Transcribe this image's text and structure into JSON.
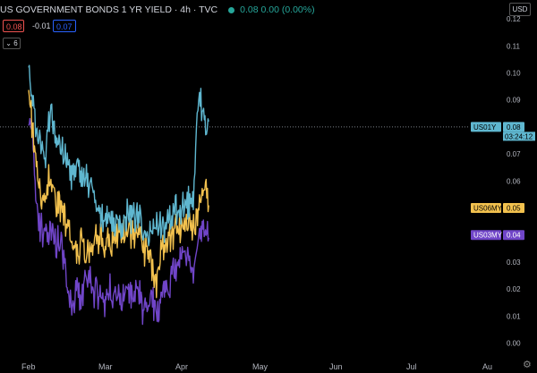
{
  "header": {
    "symbol_title": "US GOVERNMENT BONDS 1 YR YIELD · 4h · TVC",
    "ohlc": "0.08 0.00 (0.00%)"
  },
  "trade": {
    "sell": "0.08",
    "spread": "-0.01",
    "buy": "0.07"
  },
  "indicator_toggle": "6",
  "currency": "USD",
  "settings_icon": "gear-icon",
  "colors": {
    "us01y": "#5fb7d0",
    "us06my": "#f2c14e",
    "us03my": "#7045c8",
    "bg": "#000000"
  },
  "chart_data": {
    "type": "line",
    "x": [
      "Feb",
      "Mar",
      "Apr",
      "May",
      "Jun",
      "Jul",
      "Au"
    ],
    "ylim": [
      -0.005,
      0.125
    ],
    "y_ticks": [
      "0.12",
      "0.11",
      "0.10",
      "0.09",
      "0.08",
      "0.07",
      "0.06",
      "0.05",
      "0.04",
      "0.03",
      "0.02",
      "0.01",
      "0.00"
    ],
    "series": [
      {
        "name": "US01Y",
        "last": "0.08",
        "countdown": "03:24:12",
        "anchors": [
          [
            0,
            0.1
          ],
          [
            0.06,
            0.09
          ],
          [
            0.1,
            0.08
          ],
          [
            0.16,
            0.07
          ],
          [
            0.22,
            0.068
          ],
          [
            0.26,
            0.085
          ],
          [
            0.3,
            0.083
          ],
          [
            0.36,
            0.078
          ],
          [
            0.44,
            0.07
          ],
          [
            0.52,
            0.064
          ],
          [
            0.6,
            0.061
          ],
          [
            0.64,
            0.068
          ],
          [
            0.7,
            0.063
          ],
          [
            0.76,
            0.06
          ],
          [
            0.84,
            0.056
          ],
          [
            0.88,
            0.052
          ],
          [
            0.93,
            0.048
          ],
          [
            1.0,
            0.047
          ],
          [
            1.1,
            0.046
          ],
          [
            1.22,
            0.045
          ],
          [
            1.28,
            0.047
          ],
          [
            1.34,
            0.046
          ],
          [
            1.4,
            0.047
          ],
          [
            1.48,
            0.043
          ],
          [
            1.55,
            0.04
          ],
          [
            1.62,
            0.043
          ],
          [
            1.7,
            0.045
          ],
          [
            1.78,
            0.043
          ],
          [
            1.86,
            0.047
          ],
          [
            1.96,
            0.05
          ],
          [
            2.05,
            0.052
          ],
          [
            2.14,
            0.051
          ],
          [
            2.18,
            0.08
          ],
          [
            2.22,
            0.092
          ],
          [
            2.3,
            0.08
          ],
          [
            2.34,
            0.082
          ]
        ]
      },
      {
        "name": "US06MY",
        "last": "0.05",
        "anchors": [
          [
            0,
            0.09
          ],
          [
            0.05,
            0.08
          ],
          [
            0.1,
            0.065
          ],
          [
            0.16,
            0.052
          ],
          [
            0.22,
            0.053
          ],
          [
            0.26,
            0.063
          ],
          [
            0.3,
            0.058
          ],
          [
            0.36,
            0.053
          ],
          [
            0.42,
            0.051
          ],
          [
            0.48,
            0.045
          ],
          [
            0.52,
            0.04
          ],
          [
            0.58,
            0.037
          ],
          [
            0.64,
            0.034
          ],
          [
            0.7,
            0.038
          ],
          [
            0.76,
            0.034
          ],
          [
            0.84,
            0.036
          ],
          [
            0.9,
            0.04
          ],
          [
            0.96,
            0.037
          ],
          [
            1.02,
            0.038
          ],
          [
            1.08,
            0.037
          ],
          [
            1.16,
            0.042
          ],
          [
            1.24,
            0.039
          ],
          [
            1.3,
            0.043
          ],
          [
            1.34,
            0.041
          ],
          [
            1.4,
            0.042
          ],
          [
            1.48,
            0.036
          ],
          [
            1.55,
            0.033
          ],
          [
            1.62,
            0.028
          ],
          [
            1.66,
            0.023
          ],
          [
            1.7,
            0.031
          ],
          [
            1.78,
            0.037
          ],
          [
            1.86,
            0.04
          ],
          [
            1.96,
            0.043
          ],
          [
            2.04,
            0.042
          ],
          [
            2.1,
            0.044
          ],
          [
            2.16,
            0.045
          ],
          [
            2.22,
            0.05
          ],
          [
            2.28,
            0.06
          ],
          [
            2.34,
            0.051
          ]
        ]
      },
      {
        "name": "US03MY",
        "last": "0.04",
        "anchors": [
          [
            0,
            0.087
          ],
          [
            0.05,
            0.075
          ],
          [
            0.1,
            0.05
          ],
          [
            0.14,
            0.043
          ],
          [
            0.2,
            0.041
          ],
          [
            0.26,
            0.04
          ],
          [
            0.32,
            0.038
          ],
          [
            0.38,
            0.037
          ],
          [
            0.44,
            0.035
          ],
          [
            0.5,
            0.022
          ],
          [
            0.56,
            0.015
          ],
          [
            0.62,
            0.018
          ],
          [
            0.68,
            0.016
          ],
          [
            0.74,
            0.022
          ],
          [
            0.8,
            0.024
          ],
          [
            0.86,
            0.018
          ],
          [
            0.92,
            0.019
          ],
          [
            0.98,
            0.015
          ],
          [
            1.04,
            0.02
          ],
          [
            1.1,
            0.017
          ],
          [
            1.16,
            0.018
          ],
          [
            1.22,
            0.015
          ],
          [
            1.28,
            0.019
          ],
          [
            1.34,
            0.016
          ],
          [
            1.4,
            0.022
          ],
          [
            1.48,
            0.013
          ],
          [
            1.54,
            0.011
          ],
          [
            1.6,
            0.015
          ],
          [
            1.66,
            0.013
          ],
          [
            1.72,
            0.015
          ],
          [
            1.8,
            0.022
          ],
          [
            1.88,
            0.025
          ],
          [
            1.96,
            0.03
          ],
          [
            2.04,
            0.034
          ],
          [
            2.1,
            0.03
          ],
          [
            2.14,
            0.022
          ],
          [
            2.18,
            0.035
          ],
          [
            2.22,
            0.041
          ],
          [
            2.28,
            0.045
          ],
          [
            2.34,
            0.039
          ]
        ]
      }
    ],
    "price_line": 0.08
  }
}
